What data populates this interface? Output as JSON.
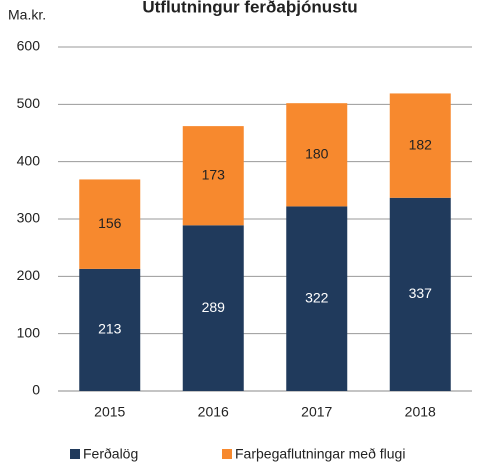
{
  "chart_data": {
    "type": "stacked_bar",
    "title": "Útflutningur ferðaþjónustu",
    "y_label": "Ma.kr.",
    "categories": [
      "2015",
      "2016",
      "2017",
      "2018"
    ],
    "series": [
      {
        "name": "Ferðalög",
        "color": "#203a5c",
        "values": [
          213,
          289,
          322,
          337
        ]
      },
      {
        "name": "Farþegaflutningar með flugi",
        "color": "#f7892e",
        "values": [
          156,
          173,
          180,
          182
        ]
      }
    ],
    "ylim": [
      0,
      600
    ],
    "yticks": [
      0,
      100,
      200,
      300,
      400,
      500,
      600
    ],
    "grid": true,
    "legend": "bottom"
  }
}
